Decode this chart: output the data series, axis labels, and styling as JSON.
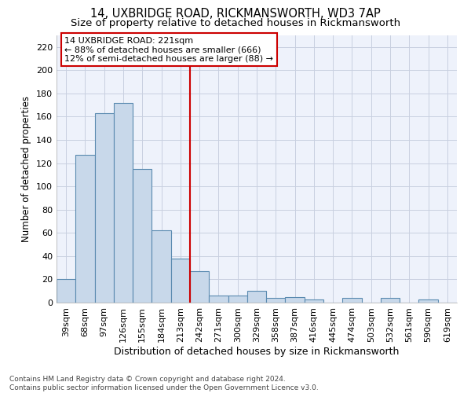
{
  "title": "14, UXBRIDGE ROAD, RICKMANSWORTH, WD3 7AP",
  "subtitle": "Size of property relative to detached houses in Rickmansworth",
  "xlabel": "Distribution of detached houses by size in Rickmansworth",
  "ylabel": "Number of detached properties",
  "categories": [
    "39sqm",
    "68sqm",
    "97sqm",
    "126sqm",
    "155sqm",
    "184sqm",
    "213sqm",
    "242sqm",
    "271sqm",
    "300sqm",
    "329sqm",
    "358sqm",
    "387sqm",
    "416sqm",
    "445sqm",
    "474sqm",
    "503sqm",
    "532sqm",
    "561sqm",
    "590sqm",
    "619sqm"
  ],
  "values": [
    20,
    127,
    163,
    172,
    115,
    62,
    38,
    27,
    6,
    6,
    10,
    4,
    5,
    3,
    0,
    4,
    0,
    4,
    0,
    3,
    0
  ],
  "bar_color": "#c8d8ea",
  "bar_edge_color": "#5a8ab0",
  "vline_x_index": 6,
  "vline_color": "#cc0000",
  "annotation_text": "14 UXBRIDGE ROAD: 221sqm\n← 88% of detached houses are smaller (666)\n12% of semi-detached houses are larger (88) →",
  "annotation_box_color": "#cc0000",
  "annotation_text_color": "#000000",
  "ylim": [
    0,
    230
  ],
  "yticks": [
    0,
    20,
    40,
    60,
    80,
    100,
    120,
    140,
    160,
    180,
    200,
    220
  ],
  "background_color": "#eef2fb",
  "grid_color": "#c8cfe0",
  "footer": "Contains HM Land Registry data © Crown copyright and database right 2024.\nContains public sector information licensed under the Open Government Licence v3.0.",
  "title_fontsize": 10.5,
  "subtitle_fontsize": 9.5,
  "xlabel_fontsize": 9,
  "ylabel_fontsize": 8.5,
  "tick_fontsize": 8,
  "footer_fontsize": 6.5,
  "annotation_fontsize": 8
}
